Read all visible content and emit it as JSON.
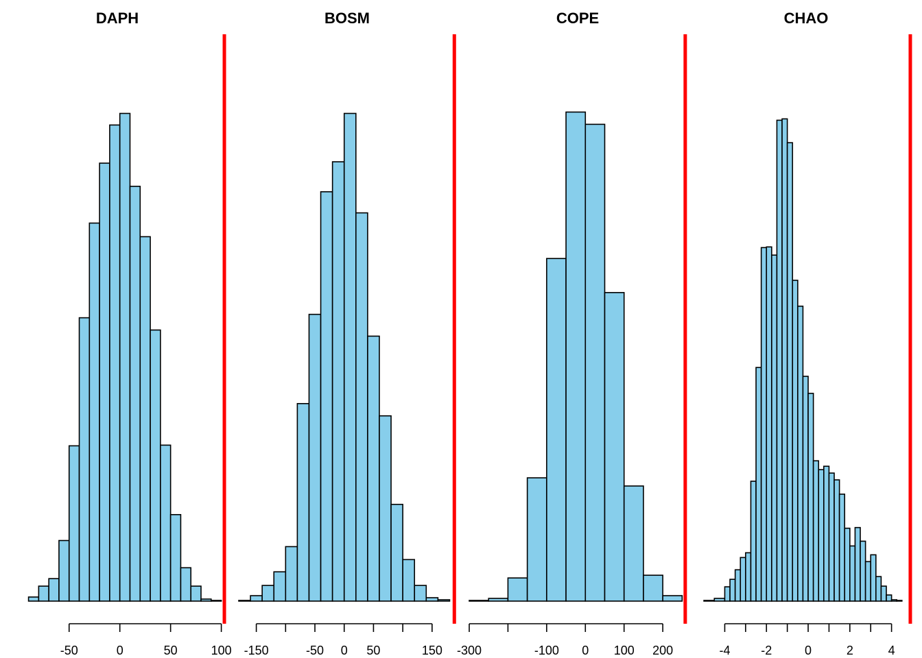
{
  "colors": {
    "bar_fill": "#87ceeb",
    "bar_stroke": "#000000",
    "reference_line": "#ff0000"
  },
  "chart_data": [
    {
      "type": "bar",
      "title": "DAPH",
      "xlim": [
        -110,
        105
      ],
      "ylim": [
        0,
        800
      ],
      "ticks": [
        -50,
        0,
        50,
        100
      ],
      "tick_labels": [
        "-50",
        "0",
        "50",
        "100"
      ],
      "axis_range": [
        -50,
        100
      ],
      "bin_edges": [
        -90,
        -80,
        -70,
        -60,
        -50,
        -40,
        -30,
        -20,
        -10,
        0,
        10,
        20,
        30,
        40,
        50,
        60,
        70,
        80,
        90,
        100
      ],
      "counts": [
        6,
        22,
        33,
        89,
        228,
        416,
        555,
        643,
        699,
        716,
        609,
        535,
        398,
        229,
        127,
        49,
        22,
        3,
        1
      ],
      "reference_x": 103
    },
    {
      "type": "bar",
      "title": "BOSM",
      "xlim": [
        -180,
        190
      ],
      "ylim": [
        0,
        800
      ],
      "ticks": [
        -150,
        -100,
        -50,
        0,
        50,
        100,
        150
      ],
      "tick_labels": [
        "-150",
        "",
        "-50",
        "0",
        "50",
        "",
        "150"
      ],
      "axis_range": [
        -150,
        150
      ],
      "bin_edges": [
        -180,
        -160,
        -140,
        -120,
        -100,
        -80,
        -60,
        -40,
        -20,
        0,
        20,
        40,
        60,
        80,
        100,
        120,
        140,
        160,
        180
      ],
      "counts": [
        1,
        8,
        23,
        43,
        80,
        290,
        421,
        601,
        645,
        716,
        570,
        389,
        272,
        142,
        61,
        23,
        5,
        2
      ],
      "reference_x": 188
    },
    {
      "type": "bar",
      "title": "COPE",
      "xlim": [
        -300,
        260
      ],
      "ylim": [
        0,
        800
      ],
      "ticks": [
        -300,
        -200,
        -100,
        0,
        100,
        200
      ],
      "tick_labels": [
        "-300",
        "",
        "-100",
        "0",
        "100",
        "200"
      ],
      "axis_range": [
        -300,
        200
      ],
      "bin_edges": [
        -300,
        -250,
        -200,
        -150,
        -100,
        -50,
        0,
        50,
        100,
        150,
        200,
        250
      ],
      "counts": [
        1,
        4,
        34,
        181,
        503,
        718,
        700,
        453,
        169,
        38,
        8
      ],
      "reference_x": 258
    },
    {
      "type": "bar",
      "title": "CHAO",
      "xlim": [
        -5.2,
        5
      ],
      "ylim": [
        0,
        800
      ],
      "ticks": [
        -4,
        -3,
        -2,
        -1,
        0,
        1,
        2,
        3,
        4
      ],
      "tick_labels": [
        "-4",
        "",
        "-2",
        "",
        "0",
        "",
        "2",
        "",
        "4"
      ],
      "axis_range": [
        -4,
        4
      ],
      "bin_edges": [
        -5,
        -4.5,
        -4,
        -3.75,
        -3.5,
        -3.25,
        -3,
        -2.75,
        -2.5,
        -2.25,
        -2,
        -1.75,
        -1.5,
        -1.25,
        -1,
        -0.75,
        -0.5,
        -0.25,
        0,
        0.25,
        0.5,
        0.75,
        1,
        1.25,
        1.5,
        1.75,
        2,
        2.25,
        2.5,
        2.75,
        3,
        3.25,
        3.5,
        3.75,
        4,
        4.25,
        4.5,
        4.75,
        5
      ],
      "counts": [
        1,
        4,
        21,
        32,
        46,
        64,
        71,
        176,
        343,
        519,
        520,
        508,
        706,
        708,
        673,
        471,
        433,
        330,
        305,
        206,
        193,
        198,
        188,
        178,
        157,
        107,
        81,
        108,
        88,
        58,
        68,
        36,
        22,
        9,
        2,
        1,
        0,
        0
      ],
      "reference_x": 4.9
    }
  ]
}
